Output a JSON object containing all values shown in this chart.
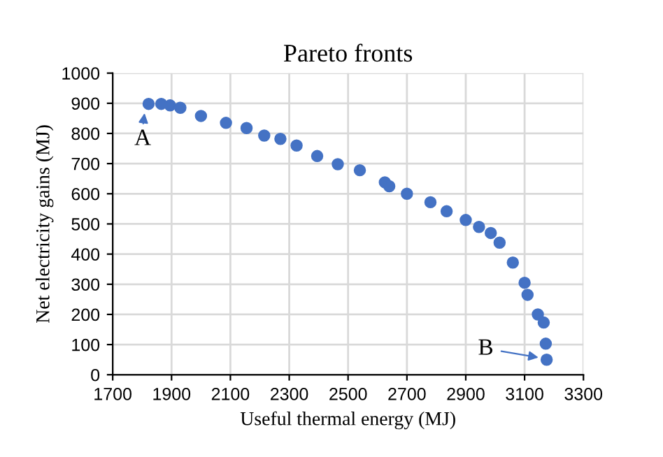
{
  "chart_data": {
    "type": "scatter",
    "title": "Pareto fronts",
    "xlabel": "Useful thermal energy (MJ)",
    "ylabel": "Net electricity gains (MJ)",
    "x": [
      1822,
      1865,
      1895,
      1930,
      2000,
      2085,
      2155,
      2215,
      2270,
      2325,
      2395,
      2465,
      2540,
      2625,
      2640,
      2700,
      2780,
      2835,
      2900,
      2945,
      2985,
      3015,
      3060,
      3100,
      3110,
      3145,
      3165,
      3172,
      3175
    ],
    "series": [
      {
        "color": "#4472c4",
        "values": [
          898,
          898,
          893,
          885,
          858,
          835,
          818,
          793,
          782,
          760,
          725,
          698,
          678,
          638,
          625,
          600,
          572,
          542,
          513,
          490,
          470,
          438,
          372,
          305,
          265,
          200,
          173,
          103,
          50
        ]
      }
    ],
    "xlim": [
      1700,
      3300
    ],
    "xticks": [
      1700,
      1900,
      2100,
      2300,
      2500,
      2700,
      2900,
      3100,
      3300
    ],
    "ylim": [
      0,
      1000
    ],
    "yticks": [
      0,
      100,
      200,
      300,
      400,
      500,
      600,
      700,
      800,
      900,
      1000
    ],
    "grid": true,
    "marker": "circle",
    "legend": false,
    "annotations": [
      {
        "text": "A",
        "x": 1810,
        "y": 880
      },
      {
        "text": "B",
        "x": 3160,
        "y": 55
      }
    ]
  }
}
